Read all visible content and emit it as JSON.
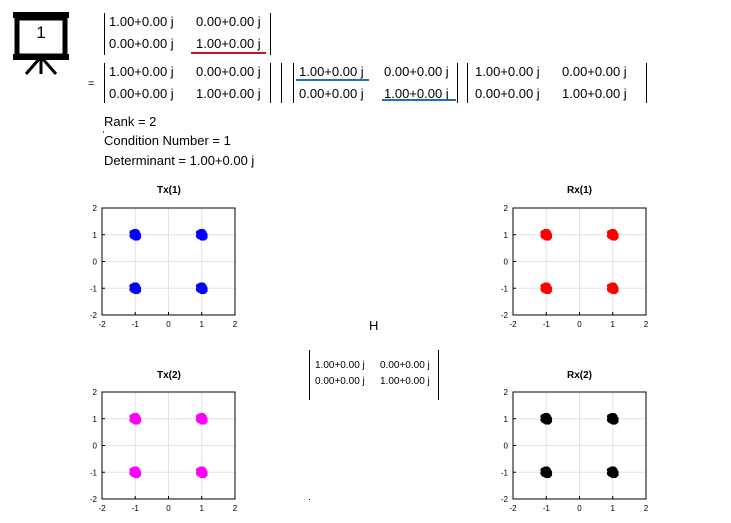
{
  "slide_icon": {
    "number": "1",
    "name": "presentation-board-icon"
  },
  "equals": "=",
  "top_matrix": [
    [
      "1.00+0.00 j",
      "0.00+0.00 j"
    ],
    [
      "0.00+0.00 j",
      "1.00+0.00 j"
    ]
  ],
  "svd": {
    "U": [
      [
        "1.00+0.00 j",
        "0.00+0.00 j"
      ],
      [
        "0.00+0.00 j",
        "1.00+0.00 j"
      ]
    ],
    "S": [
      [
        "1.00+0.00 j",
        "0.00+0.00 j"
      ],
      [
        "0.00+0.00 j",
        "1.00+0.00 j"
      ]
    ],
    "V": [
      [
        "1.00+0.00 j",
        "0.00+0.00 j"
      ],
      [
        "0.00+0.00 j",
        "1.00+0.00 j"
      ]
    ]
  },
  "stats": {
    "rank": "Rank = 2",
    "condition": "Condition Number = 1",
    "determinant": "Determinant = 1.00+0.00 j"
  },
  "channel_label": "H",
  "channel_matrix": [
    [
      "1.00+0.00 j",
      "0.00+0.00 j"
    ],
    [
      "0.00+0.00 j",
      "1.00+0.00 j"
    ]
  ],
  "colors": {
    "tx1": "#0000ff",
    "rx1": "#ff0000",
    "tx2": "#ff00ff",
    "rx2": "#000000",
    "red_line": "#c0142a",
    "blue_line": "#1f6fb4"
  },
  "chart_data": [
    {
      "type": "scatter",
      "title": "Tx(1)",
      "color": "#0000ff",
      "x": [
        -1,
        1,
        -1,
        1
      ],
      "y": [
        1,
        1,
        -1,
        -1
      ],
      "xlim": [
        -2,
        2
      ],
      "ylim": [
        -2,
        2
      ],
      "xticks": [
        "-2",
        "-1",
        "0",
        "1",
        "2"
      ],
      "yticks": [
        "2",
        "1",
        "0",
        "-1",
        "-2"
      ],
      "grid": true
    },
    {
      "type": "scatter",
      "title": "Rx(1)",
      "color": "#ff0000",
      "x": [
        -1,
        1,
        -1,
        1
      ],
      "y": [
        1,
        1,
        -1,
        -1
      ],
      "xlim": [
        -2,
        2
      ],
      "ylim": [
        -2,
        2
      ],
      "xticks": [
        "-2",
        "-1",
        "0",
        "1",
        "2"
      ],
      "yticks": [
        "2",
        "1",
        "0",
        "-1",
        "-2"
      ],
      "grid": true
    },
    {
      "type": "scatter",
      "title": "Tx(2)",
      "color": "#ff00ff",
      "x": [
        -1,
        1,
        -1,
        1
      ],
      "y": [
        1,
        1,
        -1,
        -1
      ],
      "xlim": [
        -2,
        2
      ],
      "ylim": [
        -2,
        2
      ],
      "xticks": [
        "-2",
        "-1",
        "0",
        "1",
        "2"
      ],
      "yticks": [
        "2",
        "1",
        "0",
        "-1",
        "-2"
      ],
      "grid": true
    },
    {
      "type": "scatter",
      "title": "Rx(2)",
      "color": "#000000",
      "x": [
        -1,
        1,
        -1,
        1
      ],
      "y": [
        1,
        1,
        -1,
        -1
      ],
      "xlim": [
        -2,
        2
      ],
      "ylim": [
        -2,
        2
      ],
      "xticks": [
        "-2",
        "-1",
        "0",
        "1",
        "2"
      ],
      "yticks": [
        "2",
        "1",
        "0",
        "-1",
        "-2"
      ],
      "grid": true
    }
  ]
}
